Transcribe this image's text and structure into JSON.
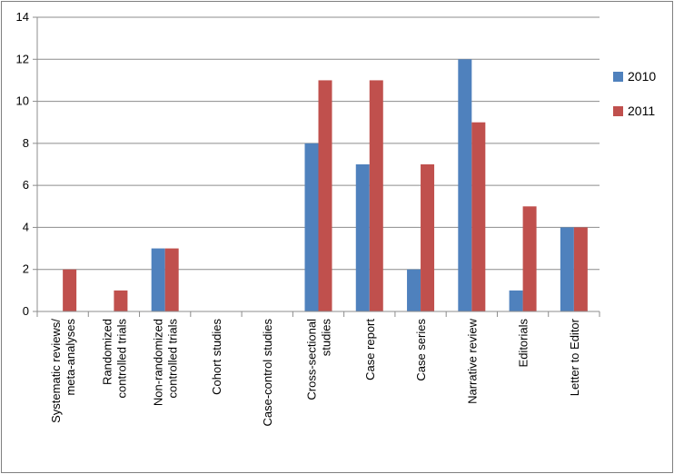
{
  "chart_data": {
    "type": "bar",
    "categories": [
      [
        "Systematic reviews/",
        "meta-analyses"
      ],
      [
        "Randomized",
        "controlled trials"
      ],
      [
        "Non-randomized",
        "controlled trials"
      ],
      [
        "Cohort studies"
      ],
      [
        "Case-control studies"
      ],
      [
        "Cross-sectional",
        "studies"
      ],
      [
        "Case report"
      ],
      [
        "Case series"
      ],
      [
        "Narrative review"
      ],
      [
        "Editorials"
      ],
      [
        "Letter to Editor"
      ]
    ],
    "series": [
      {
        "name": "2010",
        "color": "#4f81bd",
        "values": [
          0,
          0,
          3,
          0,
          0,
          8,
          7,
          2,
          12,
          1,
          4
        ]
      },
      {
        "name": "2011",
        "color": "#c0504d",
        "values": [
          2,
          1,
          3,
          0,
          0,
          11,
          11,
          7,
          9,
          5,
          4
        ]
      }
    ],
    "y_ticks": [
      "0",
      "2",
      "4",
      "6",
      "8",
      "10",
      "12",
      "14"
    ],
    "ylim": [
      0,
      14
    ],
    "grid": true,
    "legend_position": "right"
  }
}
